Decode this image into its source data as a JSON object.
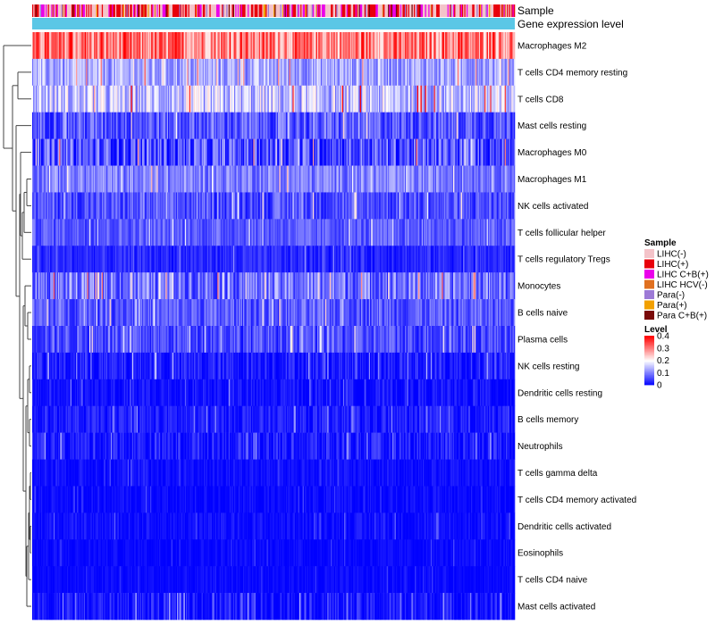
{
  "chart_data": {
    "type": "heatmap",
    "title": "",
    "annotation_tracks": [
      "Sample",
      "Gene expression level"
    ],
    "annotation_colors": {
      "sample_palette": [
        "#f4c3c9",
        "#e8000b",
        "#ea00ea",
        "#e07020",
        "#9d7ad6",
        "#f2a000",
        "#7a0a0a"
      ],
      "gene_expression_level": "#5bc7e6"
    },
    "rows": [
      {
        "name": "Macrophages M2",
        "mean": 0.3,
        "spread": 0.09
      },
      {
        "name": "T cells CD4 memory resting",
        "mean": 0.13,
        "spread": 0.06
      },
      {
        "name": "T cells CD8",
        "mean": 0.15,
        "spread": 0.08
      },
      {
        "name": "Mast cells resting",
        "mean": 0.07,
        "spread": 0.06
      },
      {
        "name": "Macrophages M0",
        "mean": 0.06,
        "spread": 0.08
      },
      {
        "name": "Macrophages M1",
        "mean": 0.1,
        "spread": 0.05
      },
      {
        "name": "NK cells activated",
        "mean": 0.06,
        "spread": 0.05
      },
      {
        "name": "T cells follicular helper",
        "mean": 0.07,
        "spread": 0.04
      },
      {
        "name": "T cells regulatory  Tregs",
        "mean": 0.03,
        "spread": 0.03
      },
      {
        "name": "Monocytes",
        "mean": 0.09,
        "spread": 0.07
      },
      {
        "name": "B cells naive",
        "mean": 0.07,
        "spread": 0.05
      },
      {
        "name": "Plasma cells",
        "mean": 0.06,
        "spread": 0.05
      },
      {
        "name": "NK cells resting",
        "mean": 0.02,
        "spread": 0.04
      },
      {
        "name": "Dendritic cells resting",
        "mean": 0.01,
        "spread": 0.03
      },
      {
        "name": "B cells memory",
        "mean": 0.02,
        "spread": 0.03
      },
      {
        "name": "Neutrophils",
        "mean": 0.02,
        "spread": 0.04
      },
      {
        "name": "T cells gamma delta",
        "mean": 0.01,
        "spread": 0.02
      },
      {
        "name": "T cells CD4 memory activated",
        "mean": 0.005,
        "spread": 0.02
      },
      {
        "name": "Dendritic cells activated",
        "mean": 0.01,
        "spread": 0.02
      },
      {
        "name": "Eosinophils",
        "mean": 0.005,
        "spread": 0.015
      },
      {
        "name": "T cells CD4 naive",
        "mean": 0.005,
        "spread": 0.015
      },
      {
        "name": "Mast cells activated",
        "mean": 0.015,
        "spread": 0.04
      }
    ],
    "columns_count": 430,
    "value_range": [
      0,
      0.4
    ],
    "color_scale": {
      "low": "#0000ff",
      "mid": "#ffffff",
      "high": "#ff0000",
      "mid_value": 0.2
    },
    "legend_sample": {
      "title": "Sample",
      "items": [
        {
          "label": "LIHC(-)",
          "color": "#f4c3c9"
        },
        {
          "label": "LIHC(+)",
          "color": "#e8000b"
        },
        {
          "label": "LIHC C+B(+)",
          "color": "#ea00ea"
        },
        {
          "label": "LIHC HCV(-)",
          "color": "#e07020"
        },
        {
          "label": "Para(-)",
          "color": "#9d7ad6"
        },
        {
          "label": "Para(+)",
          "color": "#f2a000"
        },
        {
          "label": "Para C+B(+)",
          "color": "#7a0a0a"
        }
      ]
    },
    "legend_level": {
      "title": "Level",
      "ticks": [
        "0.4",
        "0.3",
        "0.2",
        "0.1",
        "0"
      ],
      "tick_values": [
        0.4,
        0.3,
        0.2,
        0.1,
        0
      ]
    },
    "dendrogram": "row clustering dendrogram on left"
  }
}
